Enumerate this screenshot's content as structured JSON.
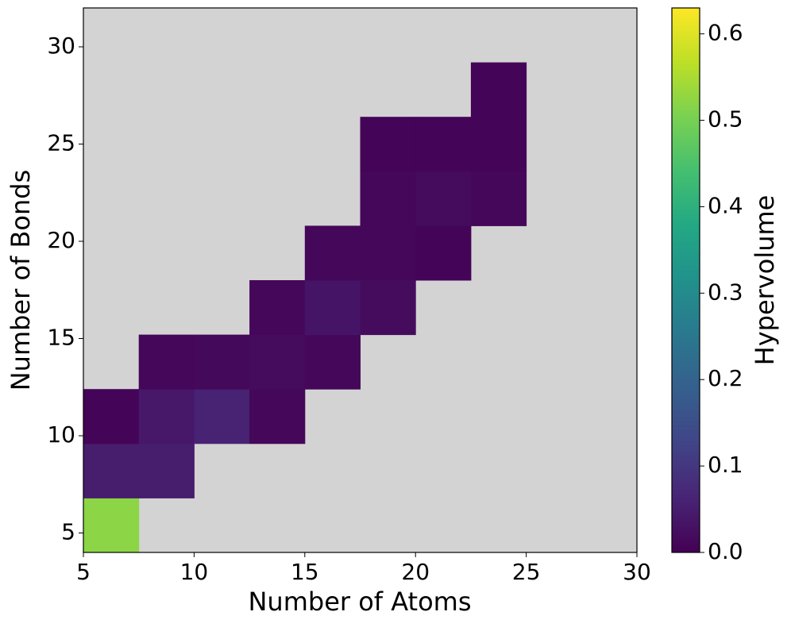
{
  "chart_data": {
    "type": "heatmap",
    "xlabel": "Number of Atoms",
    "ylabel": "Number of Bonds",
    "xbins": [
      5,
      7.5,
      10,
      12.5,
      15,
      17.5,
      20,
      22.5,
      25,
      27.5,
      30
    ],
    "ybins": [
      4,
      6.8,
      9.6,
      12.4,
      15.2,
      18,
      20.8,
      23.6,
      26.4,
      29.2,
      32
    ],
    "values": [
      [
        0.52,
        null,
        null,
        null,
        null,
        null,
        null,
        null,
        null,
        null
      ],
      [
        0.05,
        0.05,
        null,
        null,
        null,
        null,
        null,
        null,
        null,
        null
      ],
      [
        0.005,
        0.04,
        0.06,
        0.01,
        null,
        null,
        null,
        null,
        null,
        null
      ],
      [
        null,
        0.01,
        0.015,
        0.02,
        0.01,
        null,
        null,
        null,
        null,
        null
      ],
      [
        null,
        null,
        null,
        0.01,
        0.035,
        0.02,
        null,
        null,
        null,
        null
      ],
      [
        null,
        null,
        null,
        null,
        0.01,
        0.01,
        0.005,
        null,
        null,
        null
      ],
      [
        null,
        null,
        null,
        null,
        null,
        0.01,
        0.02,
        0.01,
        null,
        null
      ],
      [
        null,
        null,
        null,
        null,
        null,
        0.005,
        0.005,
        0.005,
        null,
        null
      ],
      [
        null,
        null,
        null,
        null,
        null,
        null,
        null,
        0.005,
        null,
        null
      ],
      [
        null,
        null,
        null,
        null,
        null,
        null,
        null,
        null,
        null,
        null
      ]
    ],
    "xlim": [
      5,
      30
    ],
    "xticks": [
      5,
      10,
      15,
      20,
      25,
      30
    ],
    "ylim": [
      4,
      32
    ],
    "yticks": [
      5,
      10,
      15,
      20,
      25,
      30
    ],
    "background": "#d3d3d3",
    "colorbar": {
      "label": "Hypervolume",
      "colormap": "viridis",
      "lim": [
        0,
        0.63
      ],
      "ticks": [
        {
          "value": 0,
          "label": "0.0"
        },
        0.1,
        0.2,
        0.3,
        0.4,
        0.5,
        0.6
      ]
    }
  }
}
